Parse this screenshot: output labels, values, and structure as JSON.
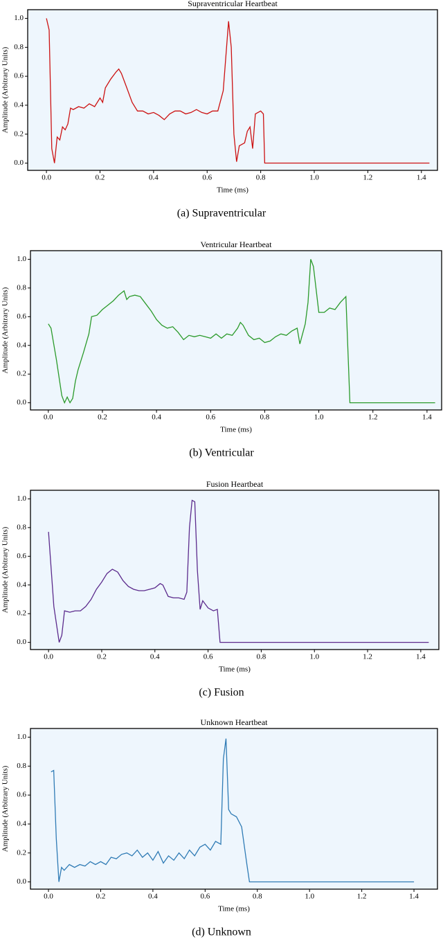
{
  "chart_data": [
    {
      "type": "line",
      "title": "Supraventricular Heartbeat",
      "caption": "(a)  Supraventricular",
      "x_label": "Time (ms)",
      "y_label": "Amplitude (Arbitrary Units)",
      "xlim": [
        -0.07,
        1.46
      ],
      "ylim": [
        -0.05,
        1.06
      ],
      "xticks": [
        {
          "value": 0,
          "label": "0.0"
        },
        0.2,
        0.4,
        0.6,
        0.8,
        {
          "value": 1,
          "label": "1.0"
        },
        1.2,
        1.4
      ],
      "yticks": [
        {
          "value": 0,
          "label": "0.0"
        },
        0.2,
        0.4,
        0.6,
        0.8,
        {
          "value": 1,
          "label": "1.0"
        }
      ],
      "series": [
        {
          "name": "Supraventricular",
          "color": "#cc1111",
          "x": [
            0,
            0.01,
            0.02,
            0.03,
            0.04,
            0.05,
            0.06,
            0.07,
            0.08,
            0.09,
            0.1,
            0.12,
            0.14,
            0.16,
            0.18,
            0.2,
            0.21,
            0.22,
            0.24,
            0.26,
            0.27,
            0.28,
            0.3,
            0.32,
            0.34,
            0.36,
            0.38,
            0.4,
            0.42,
            0.44,
            0.46,
            0.48,
            0.5,
            0.52,
            0.54,
            0.56,
            0.58,
            0.6,
            0.62,
            0.64,
            0.66,
            0.68,
            0.69,
            0.7,
            0.71,
            0.72,
            0.74,
            0.75,
            0.76,
            0.77,
            0.78,
            0.8,
            0.81,
            0.815,
            1.43
          ],
          "values": [
            1.0,
            0.92,
            0.1,
            0.0,
            0.18,
            0.16,
            0.25,
            0.23,
            0.27,
            0.38,
            0.37,
            0.39,
            0.38,
            0.41,
            0.39,
            0.45,
            0.42,
            0.52,
            0.58,
            0.63,
            0.65,
            0.62,
            0.52,
            0.42,
            0.36,
            0.36,
            0.34,
            0.35,
            0.33,
            0.3,
            0.34,
            0.36,
            0.36,
            0.34,
            0.35,
            0.37,
            0.35,
            0.34,
            0.36,
            0.36,
            0.5,
            0.98,
            0.8,
            0.2,
            0.01,
            0.12,
            0.14,
            0.22,
            0.25,
            0.1,
            0.34,
            0.36,
            0.34,
            0.0,
            0.0
          ]
        }
      ]
    },
    {
      "type": "line",
      "title": "Ventricular Heartbeat",
      "caption": "(b)  Ventricular",
      "x_label": "Time (ms)",
      "y_label": "Amplitude (Arbitrary Units)",
      "xlim": [
        -0.066,
        1.454
      ],
      "ylim": [
        -0.05,
        1.06
      ],
      "xticks": [
        {
          "value": 0,
          "label": "0.0"
        },
        0.2,
        0.4,
        0.6,
        0.8,
        {
          "value": 1,
          "label": "1.0"
        },
        1.2,
        1.4
      ],
      "yticks": [
        {
          "value": 0,
          "label": "0.0"
        },
        0.2,
        0.4,
        0.6,
        0.8,
        {
          "value": 1,
          "label": "1.0"
        }
      ],
      "series": [
        {
          "name": "Ventricular",
          "color": "#2a9a2a",
          "x": [
            0,
            0.01,
            0.03,
            0.05,
            0.06,
            0.07,
            0.08,
            0.09,
            0.1,
            0.11,
            0.13,
            0.15,
            0.16,
            0.18,
            0.2,
            0.22,
            0.24,
            0.26,
            0.28,
            0.29,
            0.3,
            0.32,
            0.34,
            0.36,
            0.38,
            0.4,
            0.42,
            0.44,
            0.46,
            0.48,
            0.5,
            0.52,
            0.54,
            0.56,
            0.58,
            0.6,
            0.62,
            0.64,
            0.66,
            0.68,
            0.7,
            0.71,
            0.72,
            0.74,
            0.76,
            0.78,
            0.8,
            0.82,
            0.84,
            0.86,
            0.88,
            0.9,
            0.92,
            0.93,
            0.95,
            0.96,
            0.97,
            0.98,
            1.0,
            1.02,
            1.04,
            1.06,
            1.08,
            1.1,
            1.115,
            1.43
          ],
          "values": [
            0.55,
            0.52,
            0.3,
            0.05,
            0.0,
            0.04,
            0.0,
            0.03,
            0.15,
            0.23,
            0.35,
            0.48,
            0.6,
            0.61,
            0.65,
            0.68,
            0.71,
            0.75,
            0.78,
            0.72,
            0.74,
            0.75,
            0.74,
            0.69,
            0.64,
            0.58,
            0.54,
            0.52,
            0.53,
            0.49,
            0.44,
            0.47,
            0.46,
            0.47,
            0.46,
            0.45,
            0.48,
            0.45,
            0.48,
            0.47,
            0.52,
            0.56,
            0.54,
            0.47,
            0.44,
            0.45,
            0.42,
            0.43,
            0.46,
            0.48,
            0.47,
            0.5,
            0.52,
            0.41,
            0.55,
            0.7,
            1.0,
            0.95,
            0.63,
            0.63,
            0.66,
            0.65,
            0.7,
            0.74,
            0.0,
            0.0
          ]
        }
      ]
    },
    {
      "type": "line",
      "title": "Fusion Heartbeat",
      "caption": "(c)  Fusion",
      "x_label": "Time (ms)",
      "y_label": "Amplitude (Arbitrary Units)",
      "xlim": [
        -0.068,
        1.468
      ],
      "ylim": [
        -0.05,
        1.06
      ],
      "xticks": [
        {
          "value": 0,
          "label": "0.0"
        },
        0.2,
        0.4,
        0.6,
        0.8,
        {
          "value": 1,
          "label": "1.0"
        },
        1.2,
        1.4
      ],
      "yticks": [
        {
          "value": 0,
          "label": "0.0"
        },
        0.2,
        0.4,
        0.6,
        0.8,
        {
          "value": 1,
          "label": "1.0"
        }
      ],
      "series": [
        {
          "name": "Fusion",
          "color": "#5b2a8c",
          "x": [
            0,
            0.02,
            0.04,
            0.05,
            0.06,
            0.08,
            0.1,
            0.12,
            0.14,
            0.16,
            0.18,
            0.2,
            0.22,
            0.24,
            0.26,
            0.28,
            0.3,
            0.32,
            0.34,
            0.36,
            0.38,
            0.4,
            0.42,
            0.43,
            0.45,
            0.47,
            0.49,
            0.51,
            0.52,
            0.53,
            0.54,
            0.55,
            0.56,
            0.57,
            0.58,
            0.6,
            0.62,
            0.635,
            0.645,
            1.43
          ],
          "values": [
            0.77,
            0.25,
            0.0,
            0.05,
            0.22,
            0.21,
            0.22,
            0.22,
            0.25,
            0.3,
            0.37,
            0.42,
            0.48,
            0.51,
            0.49,
            0.43,
            0.39,
            0.37,
            0.36,
            0.36,
            0.37,
            0.38,
            0.41,
            0.4,
            0.32,
            0.31,
            0.31,
            0.3,
            0.35,
            0.8,
            0.99,
            0.98,
            0.5,
            0.23,
            0.29,
            0.24,
            0.22,
            0.23,
            0.0,
            0.0
          ]
        }
      ]
    },
    {
      "type": "line",
      "title": "Unknown Heartbeat",
      "caption": "(d)  Unknown",
      "x_label": "Time (ms)",
      "y_label": "Amplitude (Arbitrary Units)",
      "xlim": [
        -0.069,
        1.49
      ],
      "ylim": [
        -0.05,
        1.06
      ],
      "xticks": [
        {
          "value": 0,
          "label": "0.0"
        },
        0.2,
        0.4,
        0.6,
        0.8,
        {
          "value": 1,
          "label": "1.0"
        },
        1.2,
        1.4
      ],
      "yticks": [
        {
          "value": 0,
          "label": "0.0"
        },
        0.2,
        0.4,
        0.6,
        0.8,
        {
          "value": 1,
          "label": "1.0"
        }
      ],
      "series": [
        {
          "name": "Unknown",
          "color": "#2f7bb5",
          "x": [
            0.01,
            0.02,
            0.03,
            0.04,
            0.05,
            0.06,
            0.08,
            0.1,
            0.12,
            0.14,
            0.16,
            0.18,
            0.2,
            0.22,
            0.24,
            0.26,
            0.28,
            0.3,
            0.32,
            0.34,
            0.36,
            0.38,
            0.4,
            0.42,
            0.44,
            0.46,
            0.48,
            0.5,
            0.52,
            0.54,
            0.56,
            0.58,
            0.6,
            0.62,
            0.64,
            0.66,
            0.67,
            0.68,
            0.69,
            0.7,
            0.72,
            0.74,
            0.75,
            0.76,
            0.77,
            1.4
          ],
          "values": [
            0.76,
            0.77,
            0.3,
            0.0,
            0.1,
            0.08,
            0.12,
            0.1,
            0.12,
            0.11,
            0.14,
            0.12,
            0.14,
            0.12,
            0.17,
            0.16,
            0.19,
            0.2,
            0.18,
            0.22,
            0.17,
            0.2,
            0.15,
            0.21,
            0.13,
            0.18,
            0.15,
            0.2,
            0.16,
            0.22,
            0.18,
            0.24,
            0.26,
            0.22,
            0.28,
            0.26,
            0.85,
            0.99,
            0.5,
            0.47,
            0.45,
            0.38,
            0.25,
            0.12,
            0.0,
            0.0
          ]
        }
      ]
    }
  ]
}
